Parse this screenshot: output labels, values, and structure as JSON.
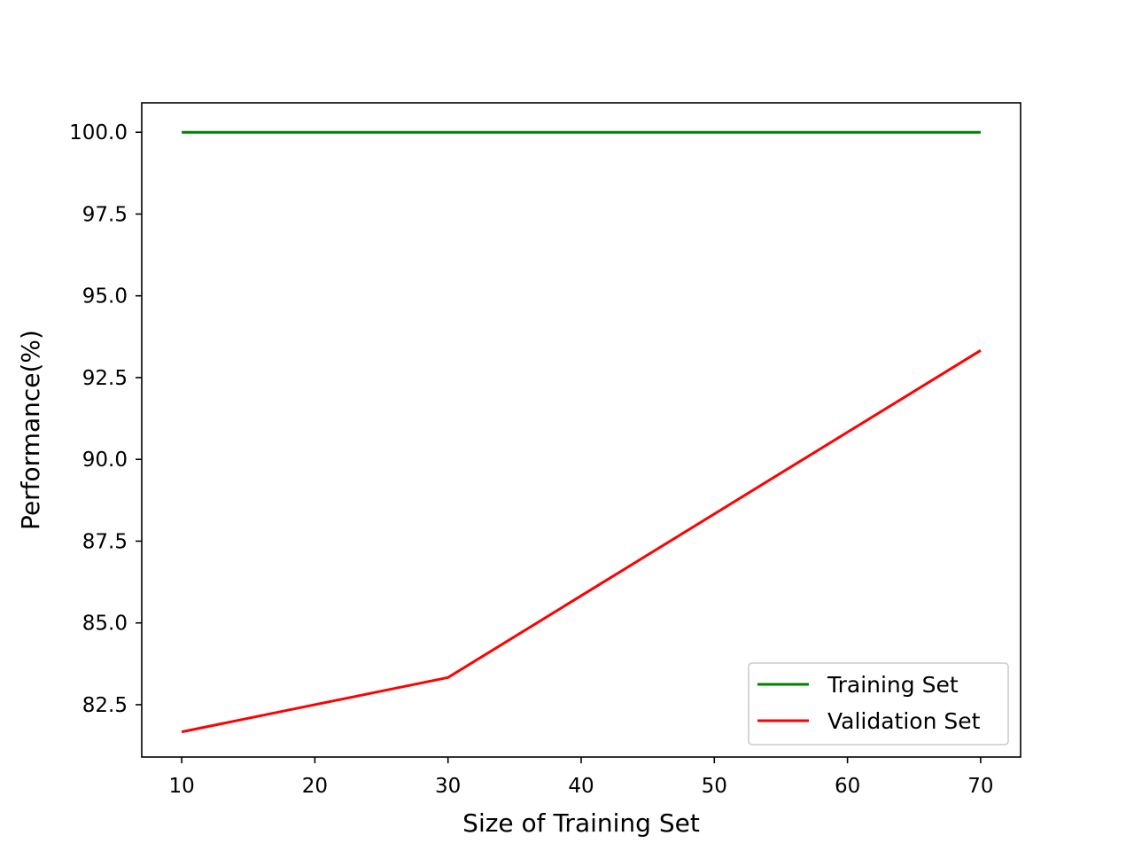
{
  "chart_data": {
    "type": "line",
    "title": "",
    "xlabel": "Size of Training Set",
    "ylabel": "Performance(%)",
    "xlim": [
      7,
      73
    ],
    "ylim": [
      80.9,
      100.9
    ],
    "xticks": [
      10,
      20,
      30,
      40,
      50,
      60,
      70
    ],
    "xtick_labels": [
      "10",
      "20",
      "30",
      "40",
      "50",
      "60",
      "70"
    ],
    "yticks": [
      82.5,
      85.0,
      87.5,
      90.0,
      92.5,
      95.0,
      97.5,
      100.0
    ],
    "ytick_labels": [
      "82.5",
      "85.0",
      "87.5",
      "90.0",
      "92.5",
      "95.0",
      "97.5",
      "100.0"
    ],
    "grid": false,
    "legend_position": "lower-right",
    "series": [
      {
        "name": "Training Set",
        "color": "#008000",
        "x": [
          10,
          30,
          70
        ],
        "y": [
          100.0,
          100.0,
          100.0
        ]
      },
      {
        "name": "Validation Set",
        "color": "#ff0000",
        "x": [
          10,
          30,
          70
        ],
        "y": [
          81.67,
          83.33,
          93.33
        ]
      }
    ]
  }
}
